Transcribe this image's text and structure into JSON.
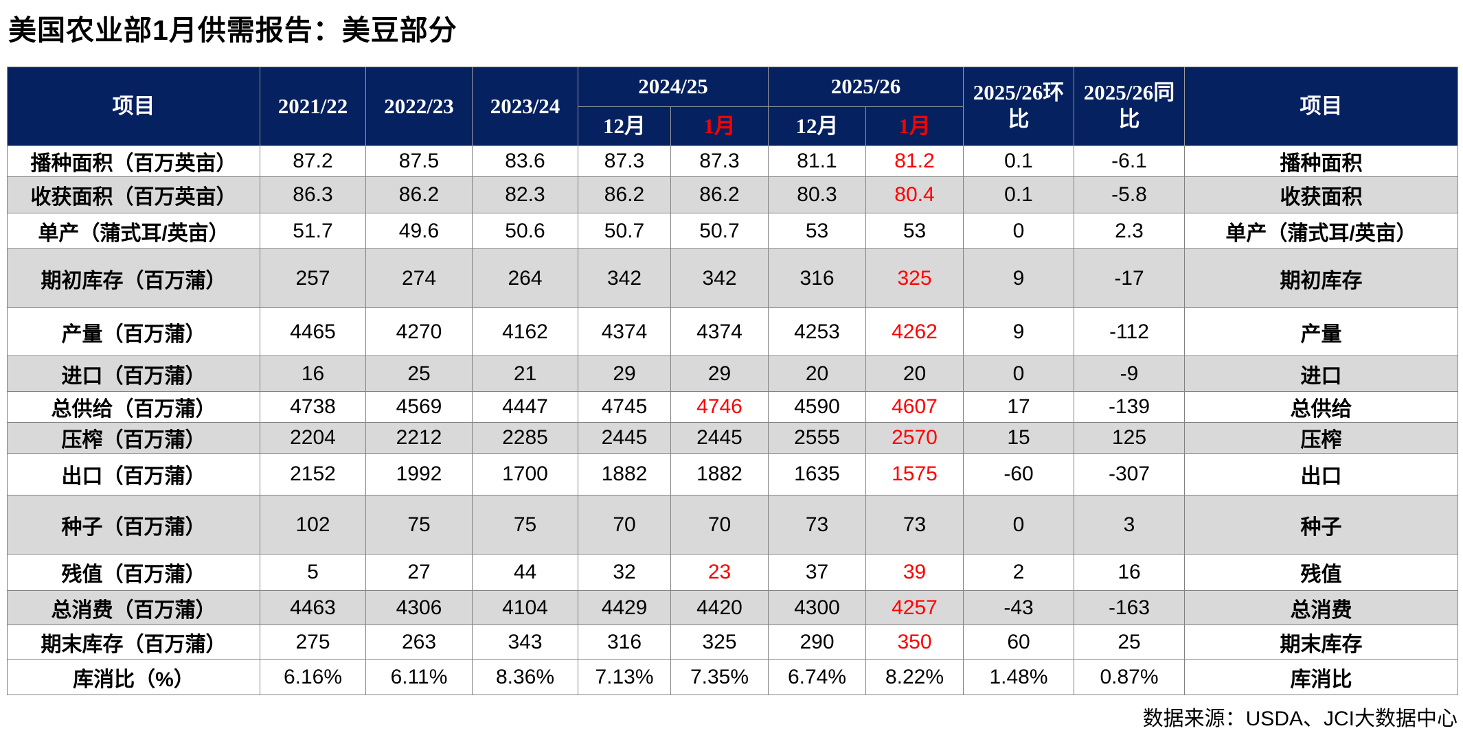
{
  "title": "美国农业部1月供需报告：美豆部分",
  "colors": {
    "header_bg": "#062160",
    "highlight_red": "#ff0000",
    "alt_row_bg": "#d9d9d9",
    "grid_line": "#828282"
  },
  "table": {
    "header": {
      "item_left": "项目",
      "year_cols": [
        "2021/22",
        "2022/23",
        "2023/24"
      ],
      "group_cols": [
        {
          "label": "2024/25",
          "sub": [
            "12月",
            "1月"
          ]
        },
        {
          "label": "2025/26",
          "sub": [
            "12月",
            "1月"
          ]
        }
      ],
      "mom": "2025/26环比",
      "yoy": "2025/26同比",
      "item_right": "项目"
    },
    "rows": [
      {
        "item": "播种面积（百万英亩）",
        "item_right": "播种面积",
        "values": [
          "87.2",
          "87.5",
          "83.6",
          "87.3",
          "87.3",
          "81.1",
          "81.2",
          "0.1",
          "-6.1"
        ],
        "red": [
          6
        ]
      },
      {
        "item": "收获面积（百万英亩）",
        "item_right": "收获面积",
        "values": [
          "86.3",
          "86.2",
          "82.3",
          "86.2",
          "86.2",
          "80.3",
          "80.4",
          "0.1",
          "-5.8"
        ],
        "red": [
          6
        ]
      },
      {
        "item": "单产（蒲式耳/英亩）",
        "item_right": "单产（蒲式耳/英亩）",
        "values": [
          "51.7",
          "49.6",
          "50.6",
          "50.7",
          "50.7",
          "53",
          "53",
          "0",
          "2.3"
        ],
        "red": []
      },
      {
        "item": "期初库存（百万蒲）",
        "item_right": "期初库存",
        "values": [
          "257",
          "274",
          "264",
          "342",
          "342",
          "316",
          "325",
          "9",
          "-17"
        ],
        "red": [
          6
        ]
      },
      {
        "item": "产量（百万蒲）",
        "item_right": "产量",
        "values": [
          "4465",
          "4270",
          "4162",
          "4374",
          "4374",
          "4253",
          "4262",
          "9",
          "-112"
        ],
        "red": [
          6
        ]
      },
      {
        "item": "进口（百万蒲）",
        "item_right": "进口",
        "values": [
          "16",
          "25",
          "21",
          "29",
          "29",
          "20",
          "20",
          "0",
          "-9"
        ],
        "red": []
      },
      {
        "item": "总供给（百万蒲）",
        "item_right": "总供给",
        "values": [
          "4738",
          "4569",
          "4447",
          "4745",
          "4746",
          "4590",
          "4607",
          "17",
          "-139"
        ],
        "red": [
          4,
          6
        ]
      },
      {
        "item": "压榨（百万蒲）",
        "item_right": "压榨",
        "values": [
          "2204",
          "2212",
          "2285",
          "2445",
          "2445",
          "2555",
          "2570",
          "15",
          "125"
        ],
        "red": [
          6
        ]
      },
      {
        "item": "出口（百万蒲）",
        "item_right": "出口",
        "values": [
          "2152",
          "1992",
          "1700",
          "1882",
          "1882",
          "1635",
          "1575",
          "-60",
          "-307"
        ],
        "red": [
          6
        ]
      },
      {
        "item": "种子（百万蒲）",
        "item_right": "种子",
        "values": [
          "102",
          "75",
          "75",
          "70",
          "70",
          "73",
          "73",
          "0",
          "3"
        ],
        "red": []
      },
      {
        "item": "残值（百万蒲）",
        "item_right": "残值",
        "values": [
          "5",
          "27",
          "44",
          "32",
          "23",
          "37",
          "39",
          "2",
          "16"
        ],
        "red": [
          4,
          6
        ]
      },
      {
        "item": "总消费（百万蒲）",
        "item_right": "总消费",
        "values": [
          "4463",
          "4306",
          "4104",
          "4429",
          "4420",
          "4300",
          "4257",
          "-43",
          "-163"
        ],
        "red": [
          6
        ]
      },
      {
        "item": "期末库存（百万蒲）",
        "item_right": "期末库存",
        "values": [
          "275",
          "263",
          "343",
          "316",
          "325",
          "290",
          "350",
          "60",
          "25"
        ],
        "red": [
          6
        ]
      },
      {
        "item": "库消比（%）",
        "item_right": "库消比",
        "values": [
          "6.16%",
          "6.11%",
          "8.36%",
          "7.13%",
          "7.35%",
          "6.74%",
          "8.22%",
          "1.48%",
          "0.87%"
        ],
        "red": []
      }
    ]
  },
  "footer": {
    "source": "数据来源：USDA、JCI大数据中心"
  }
}
